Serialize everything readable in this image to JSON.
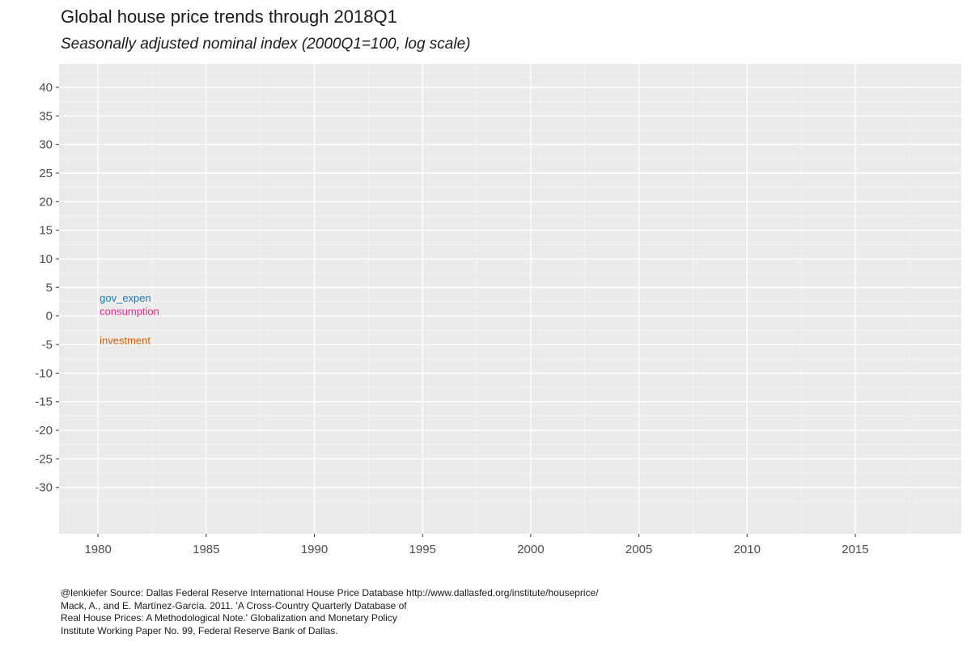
{
  "chart_data": {
    "type": "line",
    "title": "Global house price trends through 2018Q1",
    "subtitle": "Seasonally adjusted nominal index (2000Q1=100, log scale)",
    "xlabel": "",
    "ylabel": "",
    "xlim": [
      1978.2,
      2019.9
    ],
    "ylim": [
      -38.1,
      44.1
    ],
    "x_ticks": [
      1980,
      1985,
      1990,
      1995,
      2000,
      2005,
      2010,
      2015
    ],
    "x_tick_labels": [
      "1980",
      "1985",
      "1990",
      "1995",
      "2000",
      "2005",
      "2010",
      "2015"
    ],
    "y_ticks": [
      40,
      35,
      30,
      25,
      20,
      15,
      10,
      5,
      0,
      -5,
      -10,
      -15,
      -20,
      -25,
      -30
    ],
    "y_tick_labels": [
      "40",
      "35",
      "30",
      "25",
      "20",
      "15",
      "10",
      "5",
      "0",
      "-5",
      "-10",
      "-15",
      "-20",
      "-25",
      "-30"
    ],
    "grid": true,
    "legend": "none",
    "annotations": [
      {
        "text": "gov_expen",
        "x": 1980,
        "y": 3.2,
        "color": "#1f78b4"
      },
      {
        "text": "consumption",
        "x": 1980,
        "y": 0.9,
        "color": "#e7298a"
      },
      {
        "text": "investment",
        "x": 1980,
        "y": -4.2,
        "color": "#d95f02"
      }
    ],
    "series": []
  },
  "caption": {
    "lines": [
      "@lenkiefer Source: Dallas Federal Reserve International House Price Database  http://www.dallasfed.org/institute/houseprice/",
      "Mack, A., and E. Martínez-García. 2011. 'A Cross-Country Quarterly Database of",
      "Real House Prices: A Methodological Note.' Globalization and Monetary Policy",
      "Institute Working Paper No. 99, Federal Reserve Bank of Dallas."
    ]
  }
}
